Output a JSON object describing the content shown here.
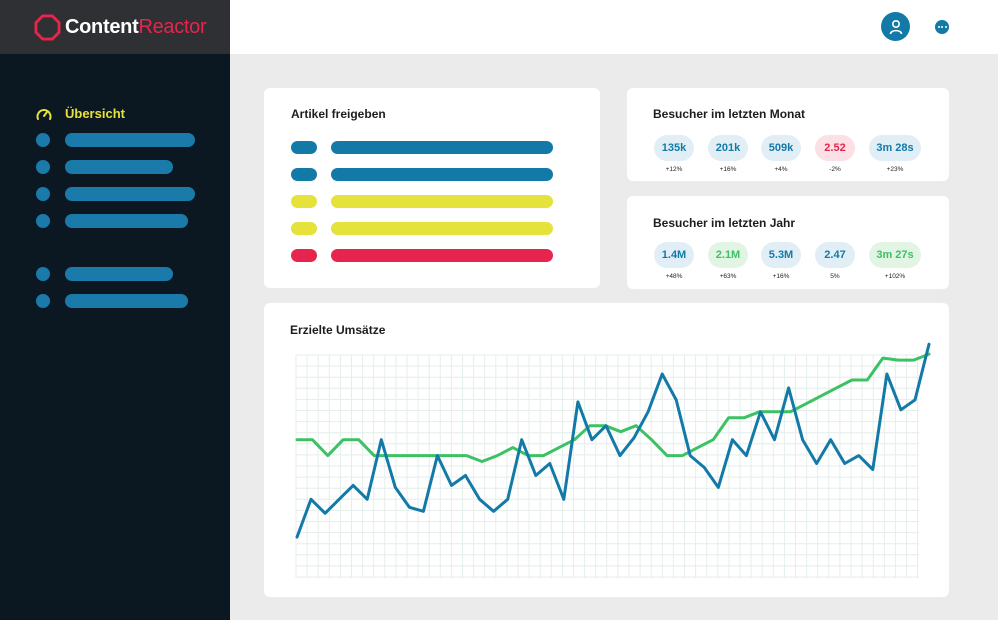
{
  "app": {
    "logo_part1": "Content",
    "logo_part2": "Reactor",
    "colors": {
      "brand_red": "#e5254d",
      "blue": "#137aa8",
      "yellow": "#e6e23c",
      "green": "#3cc164",
      "sidebar_bg": "#0b1821"
    }
  },
  "sidebar": {
    "active_item": {
      "label": "Übersicht",
      "icon": "speedometer-icon"
    },
    "placeholder_items": 6
  },
  "header": {
    "avatar_icon": "user-icon",
    "menu_icon": "more-horizontal-icon"
  },
  "articles": {
    "title": "Artikel freigeben",
    "rows": [
      {
        "status": "blue"
      },
      {
        "status": "blue"
      },
      {
        "status": "yellow"
      },
      {
        "status": "yellow"
      },
      {
        "status": "red"
      }
    ]
  },
  "visitors_month": {
    "title": "Besucher im letzten Monat",
    "stats": [
      {
        "value": "135k",
        "change": "+12%",
        "tone": "blue"
      },
      {
        "value": "201k",
        "change": "+16%",
        "tone": "blue"
      },
      {
        "value": "509k",
        "change": "+4%",
        "tone": "blue"
      },
      {
        "value": "2.52",
        "change": "-2%",
        "tone": "red"
      },
      {
        "value": "3m 28s",
        "change": "+23%",
        "tone": "blue"
      }
    ]
  },
  "visitors_year": {
    "title": "Besucher im letzten Jahr",
    "stats": [
      {
        "value": "1.4M",
        "change": "+48%",
        "tone": "blue"
      },
      {
        "value": "2.1M",
        "change": "+63%",
        "tone": "green"
      },
      {
        "value": "5.3M",
        "change": "+16%",
        "tone": "blue"
      },
      {
        "value": "2.47",
        "change": "5%",
        "tone": "blue"
      },
      {
        "value": "3m 27s",
        "change": "+102%",
        "tone": "green"
      }
    ]
  },
  "revenue": {
    "title": "Erzielte Umsätze"
  },
  "chart_data": {
    "type": "line",
    "title": "Erzielte Umsätze",
    "xlabel": "",
    "ylabel": "",
    "grid": true,
    "ylim": [
      0,
      100
    ],
    "series": [
      {
        "color": "#3cc164",
        "values": [
          60,
          60,
          52,
          60,
          60,
          52,
          52,
          52,
          52,
          52,
          52,
          52,
          49,
          52,
          56,
          52,
          52,
          56,
          60,
          67,
          67,
          64,
          67,
          60,
          52,
          52,
          56,
          60,
          71,
          71,
          74,
          74,
          74,
          78,
          82,
          86,
          90,
          90,
          101,
          100,
          100,
          103
        ]
      },
      {
        "color": "#137aa8",
        "values": [
          11,
          30,
          23,
          30,
          37,
          30,
          60,
          36,
          26,
          24,
          52,
          37,
          42,
          30,
          24,
          30,
          60,
          42,
          48,
          30,
          79,
          60,
          67,
          52,
          61,
          74,
          93,
          80,
          52,
          46,
          36,
          60,
          52,
          74,
          60,
          86,
          60,
          48,
          60,
          48,
          52,
          45,
          93,
          75,
          80,
          108
        ]
      }
    ]
  }
}
